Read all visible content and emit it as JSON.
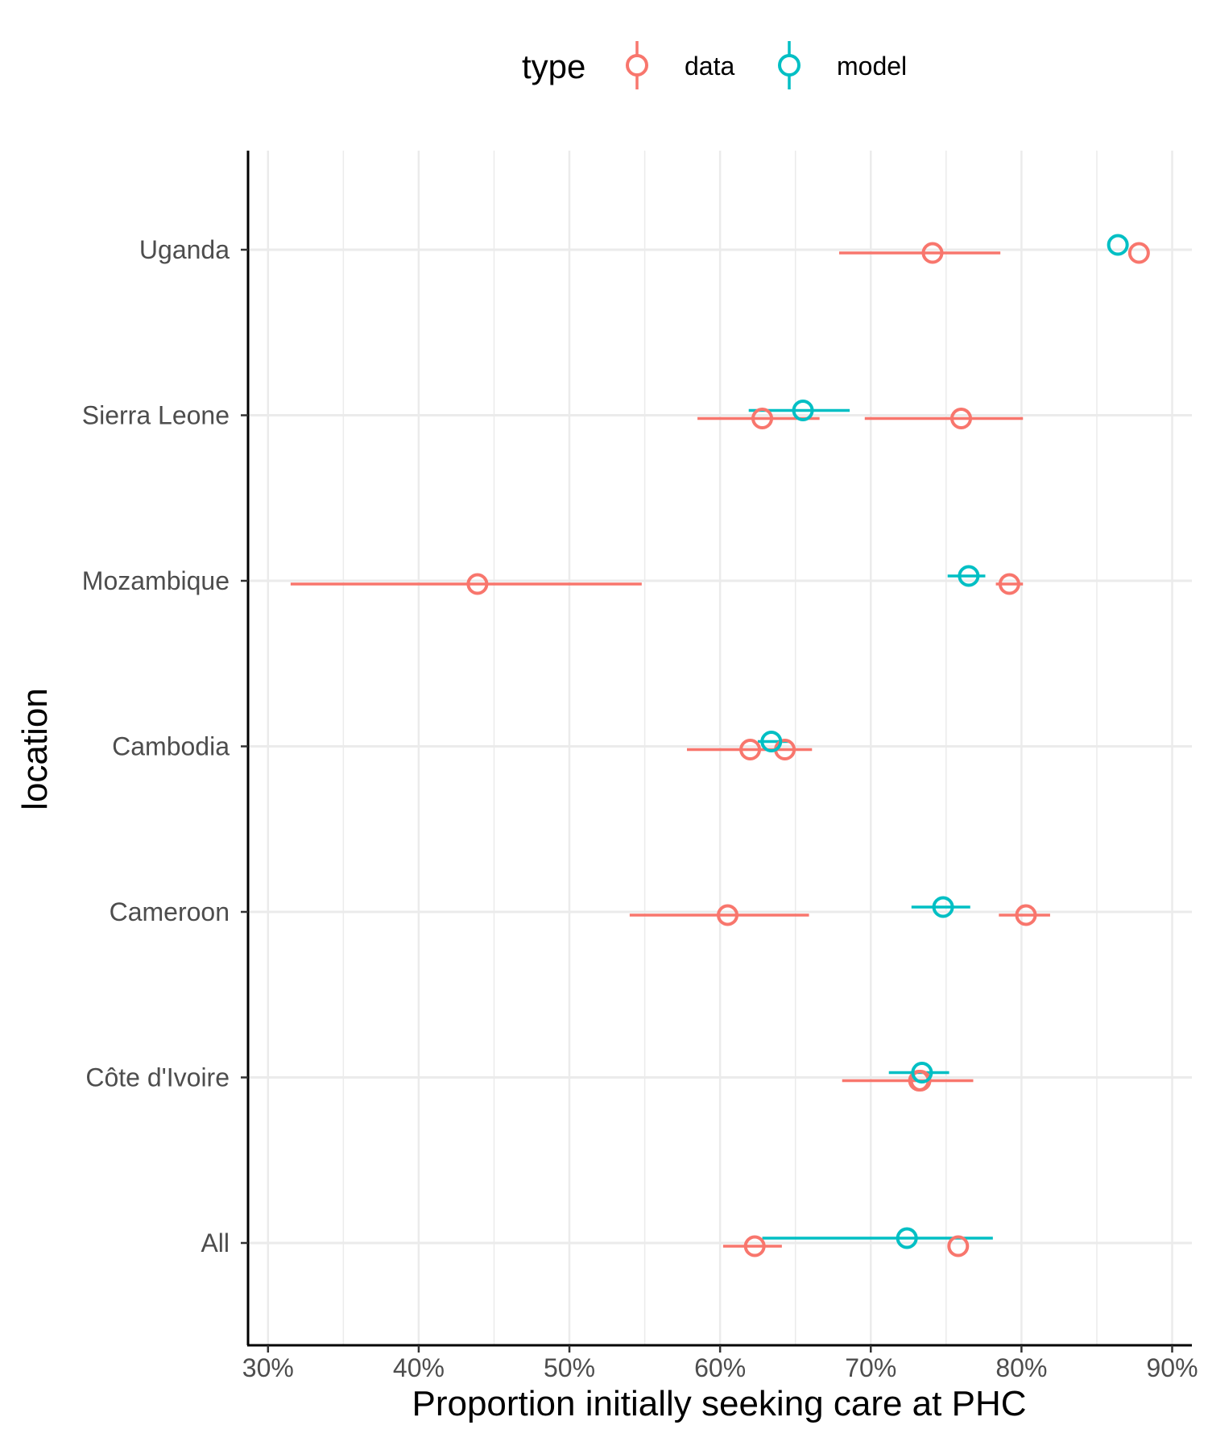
{
  "chart_data": {
    "type": "scatter",
    "xlabel": "Proportion initially seeking care at PHC",
    "ylabel": "location",
    "xlim": [
      28.7,
      91.2
    ],
    "x_ticks": [
      {
        "value": 30,
        "label": "30%"
      },
      {
        "value": 40,
        "label": "40%"
      },
      {
        "value": 50,
        "label": "50%"
      },
      {
        "value": 60,
        "label": "60%"
      },
      {
        "value": 70,
        "label": "70%"
      },
      {
        "value": 80,
        "label": "80%"
      },
      {
        "value": 90,
        "label": "90%"
      }
    ],
    "categories": [
      "All",
      "Côte d'Ivoire",
      "Cameroon",
      "Cambodia",
      "Mozambique",
      "Sierra Leone",
      "Uganda"
    ],
    "grid": true,
    "legend": {
      "title": "type",
      "placement": "top",
      "entries": [
        {
          "key": "data",
          "label": "data",
          "color": "#F8766D"
        },
        {
          "key": "model",
          "label": "model",
          "color": "#00BFC4"
        }
      ]
    },
    "series": [
      {
        "name": "data",
        "color": "#F8766D",
        "points": [
          {
            "location": "Uganda",
            "estimate": 74.1,
            "lower": 67.9,
            "upper": 78.6
          },
          {
            "location": "Uganda",
            "estimate": 87.8,
            "lower": 87.8,
            "upper": 87.8
          },
          {
            "location": "Sierra Leone",
            "estimate": 62.8,
            "lower": 58.5,
            "upper": 66.6
          },
          {
            "location": "Sierra Leone",
            "estimate": 76.0,
            "lower": 69.6,
            "upper": 80.1
          },
          {
            "location": "Mozambique",
            "estimate": 43.9,
            "lower": 31.5,
            "upper": 54.8
          },
          {
            "location": "Mozambique",
            "estimate": 79.2,
            "lower": 78.3,
            "upper": 80.1
          },
          {
            "location": "Cambodia",
            "estimate": 62.0,
            "lower": 57.8,
            "upper": 66.1
          },
          {
            "location": "Cambodia",
            "estimate": 64.3,
            "lower": 64.3,
            "upper": 64.3
          },
          {
            "location": "Cameroon",
            "estimate": 60.5,
            "lower": 54.0,
            "upper": 65.9
          },
          {
            "location": "Cameroon",
            "estimate": 80.3,
            "lower": 78.5,
            "upper": 81.9
          },
          {
            "location": "Côte d'Ivoire",
            "estimate": 73.2,
            "lower": 68.1,
            "upper": 76.8
          },
          {
            "location": "Côte d'Ivoire",
            "estimate": 73.3,
            "lower": 73.3,
            "upper": 73.3
          },
          {
            "location": "All",
            "estimate": 62.3,
            "lower": 60.2,
            "upper": 64.1
          },
          {
            "location": "All",
            "estimate": 75.8,
            "lower": 75.8,
            "upper": 75.8
          }
        ]
      },
      {
        "name": "model",
        "color": "#00BFC4",
        "points": [
          {
            "location": "Uganda",
            "estimate": 86.4,
            "lower": 86.4,
            "upper": 86.4
          },
          {
            "location": "Sierra Leone",
            "estimate": 65.5,
            "lower": 61.9,
            "upper": 68.6
          },
          {
            "location": "Mozambique",
            "estimate": 76.5,
            "lower": 75.1,
            "upper": 77.6
          },
          {
            "location": "Cambodia",
            "estimate": 63.4,
            "lower": 62.5,
            "upper": 64.6
          },
          {
            "location": "Cameroon",
            "estimate": 74.8,
            "lower": 72.7,
            "upper": 76.6
          },
          {
            "location": "Côte d'Ivoire",
            "estimate": 73.4,
            "lower": 71.2,
            "upper": 75.2
          },
          {
            "location": "All",
            "estimate": 72.4,
            "lower": 62.8,
            "upper": 78.1
          }
        ]
      }
    ]
  }
}
